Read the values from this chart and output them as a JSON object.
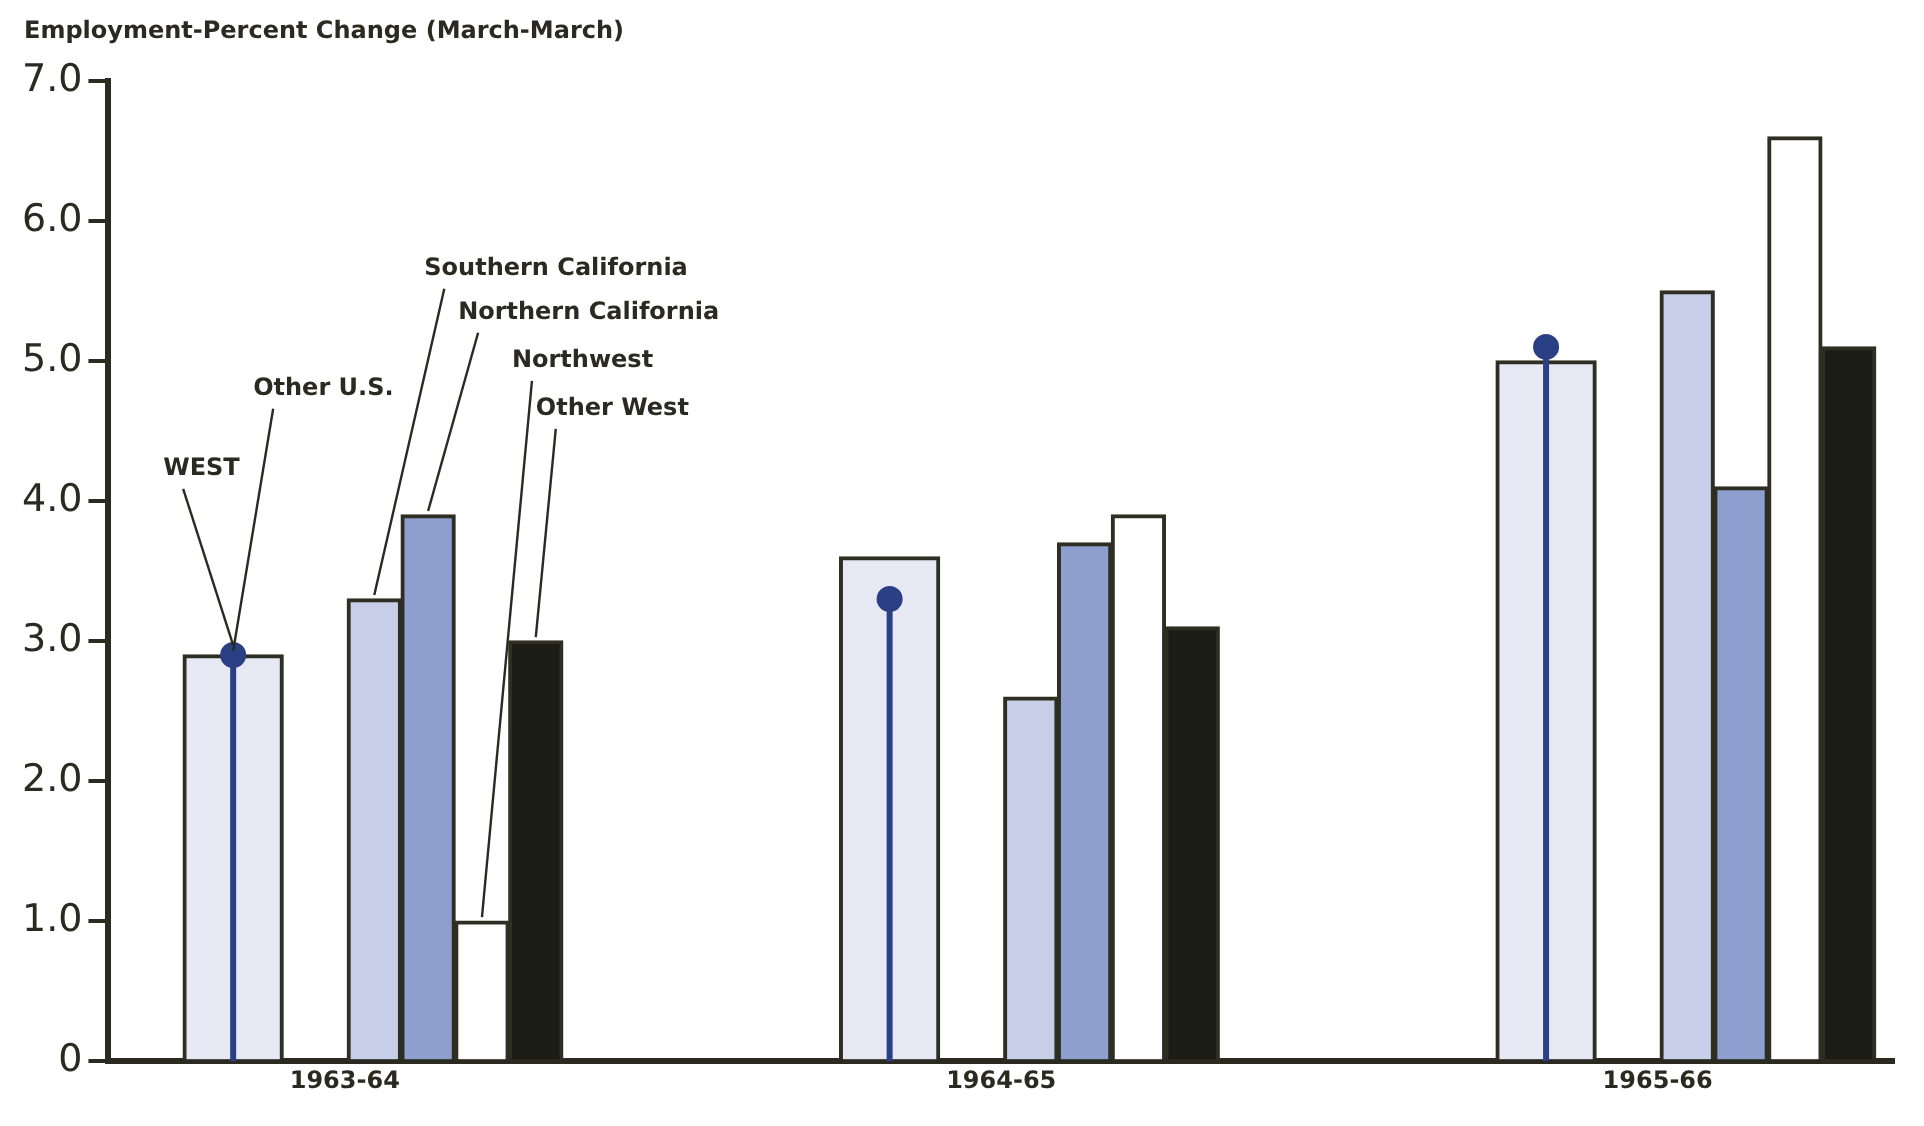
{
  "chart_data": {
    "type": "bar",
    "ylabel": "Employment-Percent Change (March-March)",
    "categories": [
      "1963-64",
      "1964-65",
      "1965-66"
    ],
    "series": [
      {
        "name": "Other U.S.",
        "color": "#e6e8f3",
        "values": [
          2.9,
          3.6,
          5.0
        ]
      },
      {
        "name": "WEST",
        "type": "lollipop",
        "color": "#2b3f85",
        "values": [
          2.9,
          3.3,
          5.1
        ]
      },
      {
        "name": "Southern California",
        "color": "#c6cee8",
        "values": [
          3.3,
          2.6,
          5.5
        ]
      },
      {
        "name": "Northern California",
        "color": "#8e9ecf",
        "values": [
          3.9,
          3.7,
          4.1
        ]
      },
      {
        "name": "Northwest",
        "color": "#ffffff",
        "values": [
          1.0,
          3.9,
          6.6
        ]
      },
      {
        "name": "Other West",
        "color": "#1c1c16",
        "values": [
          3.0,
          3.1,
          5.1
        ]
      }
    ],
    "ylim": [
      0,
      7
    ],
    "yticks": [
      0,
      {
        "value": 1,
        "label": "1.0"
      },
      {
        "value": 2,
        "label": "2.0"
      },
      {
        "value": 3,
        "label": "3.0"
      },
      {
        "value": 4,
        "label": "4.0"
      },
      {
        "value": 5,
        "label": "5.0"
      },
      {
        "value": 6,
        "label": "6.0"
      },
      {
        "value": 7,
        "label": "7.0"
      }
    ],
    "marker": "circle",
    "grid": false,
    "legend": false
  }
}
